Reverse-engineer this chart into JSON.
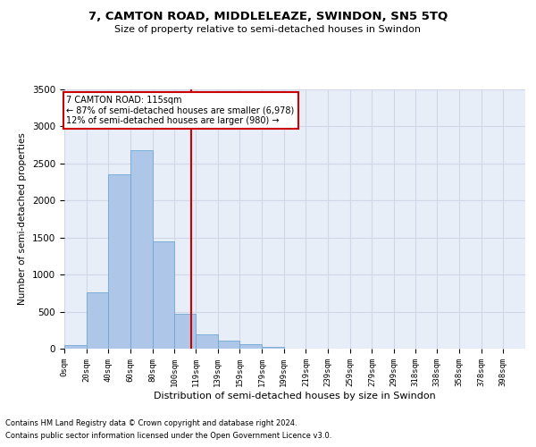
{
  "title": "7, CAMTON ROAD, MIDDLELEAZE, SWINDON, SN5 5TQ",
  "subtitle": "Size of property relative to semi-detached houses in Swindon",
  "xlabel": "Distribution of semi-detached houses by size in Swindon",
  "ylabel": "Number of semi-detached properties",
  "footnote1": "Contains HM Land Registry data © Crown copyright and database right 2024.",
  "footnote2": "Contains public sector information licensed under the Open Government Licence v3.0.",
  "annotation_title": "7 CAMTON ROAD: 115sqm",
  "annotation_line1": "← 87% of semi-detached houses are smaller (6,978)",
  "annotation_line2": "12% of semi-detached houses are larger (980) →",
  "property_size": 115,
  "bar_left_edges": [
    0,
    20,
    40,
    60,
    80,
    100,
    119,
    139,
    159,
    179,
    199,
    219,
    239,
    259,
    279,
    299,
    318,
    338,
    358,
    378
  ],
  "bar_widths": [
    20,
    20,
    20,
    20,
    20,
    19,
    20,
    20,
    20,
    20,
    20,
    20,
    20,
    20,
    20,
    19,
    20,
    20,
    20,
    20
  ],
  "bar_heights": [
    50,
    760,
    2350,
    2680,
    1450,
    470,
    195,
    105,
    60,
    30,
    0,
    0,
    0,
    0,
    0,
    0,
    0,
    0,
    0,
    0
  ],
  "bar_color": "#aec6e8",
  "bar_edge_color": "#6fa8d4",
  "red_line_color": "#cc0000",
  "annotation_box_color": "#ffffff",
  "annotation_box_edge": "#cc0000",
  "grid_color": "#d0d8e8",
  "bg_color": "#e8eef8",
  "ylim": [
    0,
    3500
  ],
  "yticks": [
    0,
    500,
    1000,
    1500,
    2000,
    2500,
    3000,
    3500
  ],
  "xtick_labels": [
    "0sqm",
    "20sqm",
    "40sqm",
    "60sqm",
    "80sqm",
    "100sqm",
    "119sqm",
    "139sqm",
    "159sqm",
    "179sqm",
    "199sqm",
    "219sqm",
    "239sqm",
    "259sqm",
    "279sqm",
    "299sqm",
    "318sqm",
    "338sqm",
    "358sqm",
    "378sqm",
    "398sqm"
  ]
}
